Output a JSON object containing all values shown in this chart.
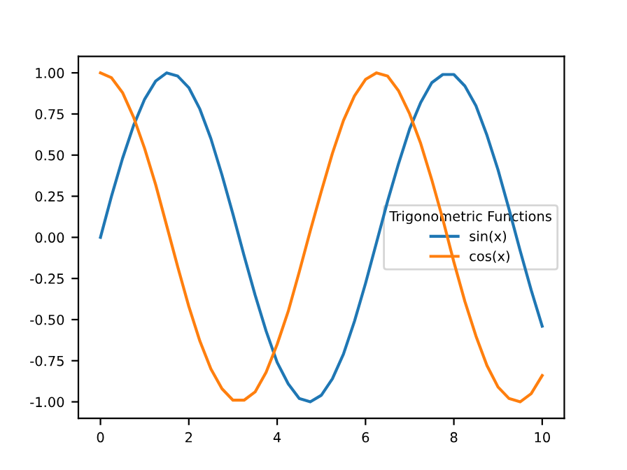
{
  "chart_data": {
    "type": "line",
    "legend_title": "Trigonometric Functions",
    "legend": "right",
    "x": [
      0,
      0.25,
      0.5,
      0.75,
      1,
      1.25,
      1.5,
      1.75,
      2,
      2.25,
      2.5,
      2.75,
      3,
      3.25,
      3.5,
      3.75,
      4,
      4.25,
      4.5,
      4.75,
      5,
      5.25,
      5.5,
      5.75,
      6,
      6.25,
      6.5,
      6.75,
      7,
      7.25,
      7.5,
      7.75,
      8,
      8.25,
      8.5,
      8.75,
      9,
      9.25,
      9.5,
      9.75,
      10
    ],
    "series": [
      {
        "name": "sin(x)",
        "color": "#1f77b4",
        "values": [
          0,
          0.25,
          0.48,
          0.68,
          0.84,
          0.95,
          1.0,
          0.98,
          0.91,
          0.78,
          0.6,
          0.38,
          0.14,
          -0.11,
          -0.35,
          -0.57,
          -0.76,
          -0.89,
          -0.98,
          -1.0,
          -0.96,
          -0.86,
          -0.71,
          -0.51,
          -0.28,
          -0.03,
          0.22,
          0.45,
          0.66,
          0.82,
          0.94,
          0.99,
          0.99,
          0.92,
          0.8,
          0.62,
          0.41,
          0.17,
          -0.08,
          -0.32,
          -0.54
        ]
      },
      {
        "name": "cos(x)",
        "color": "#ff7f0e",
        "values": [
          1.0,
          0.97,
          0.88,
          0.73,
          0.54,
          0.32,
          0.07,
          -0.18,
          -0.42,
          -0.63,
          -0.8,
          -0.92,
          -0.99,
          -0.99,
          -0.94,
          -0.82,
          -0.65,
          -0.45,
          -0.21,
          0.04,
          0.28,
          0.51,
          0.71,
          0.86,
          0.96,
          1.0,
          0.98,
          0.89,
          0.75,
          0.57,
          0.35,
          0.11,
          -0.15,
          -0.39,
          -0.6,
          -0.78,
          -0.91,
          -0.98,
          -1.0,
          -0.95,
          -0.84
        ]
      }
    ],
    "xlim": [
      -0.5,
      10.5
    ],
    "ylim": [
      -1.1,
      1.1
    ],
    "xticks": [
      0,
      2,
      4,
      6,
      8,
      10
    ],
    "yticks": [
      {
        "value": -1,
        "label": "-1.00"
      },
      {
        "value": -0.75,
        "label": "-0.75"
      },
      {
        "value": -0.5,
        "label": "-0.50"
      },
      {
        "value": -0.25,
        "label": "-0.25"
      },
      {
        "value": 0,
        "label": "0.00"
      },
      {
        "value": 0.25,
        "label": "0.25"
      },
      {
        "value": 0.5,
        "label": "0.50"
      },
      {
        "value": 0.75,
        "label": "0.75"
      },
      {
        "value": 1,
        "label": "1.00"
      }
    ],
    "grid": false,
    "marker": "none",
    "line_style": "solid"
  }
}
